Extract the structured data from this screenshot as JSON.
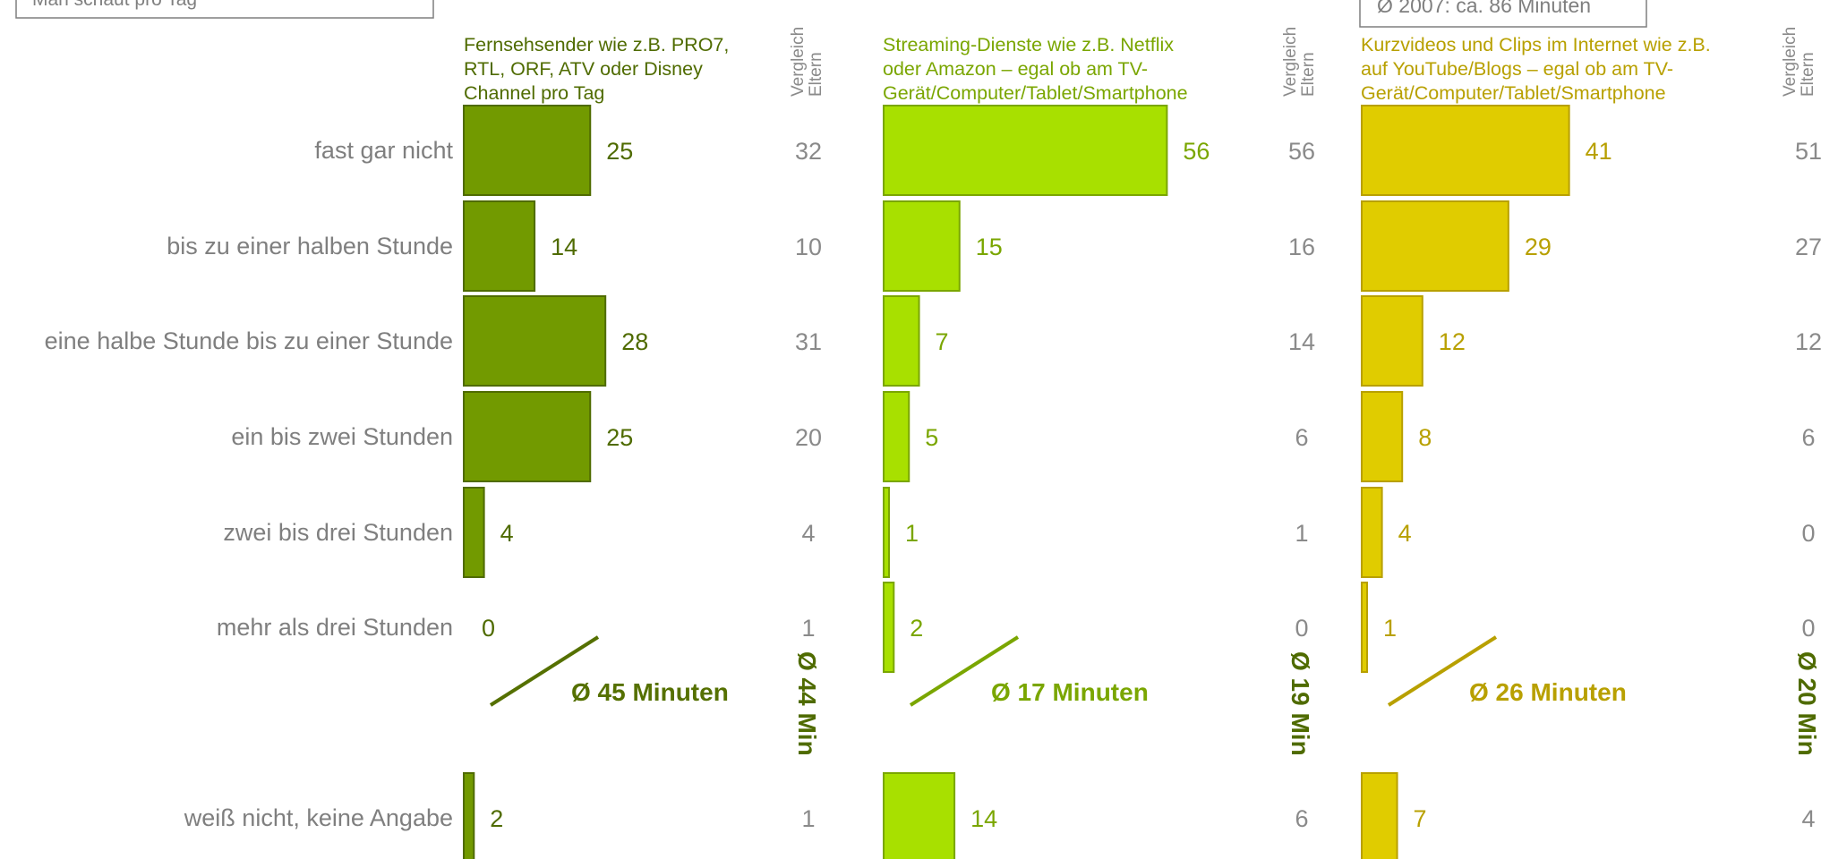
{
  "top_left_box_text": "Man schaut pro Tag",
  "top_right_box_text": "Ø 2007: ca. 86 Minuten",
  "vergleich_label_line1": "Vergleich",
  "vergleich_label_line2": "Eltern",
  "colors": {
    "tv_fill": "#729a00",
    "tv_stroke": "#4f6b00",
    "tv_text": "#4f6b00",
    "tv_avg": "#557000",
    "streaming_fill": "#a8e000",
    "streaming_stroke": "#7aa600",
    "streaming_text": "#7aa600",
    "streaming_avg": "#7aa600",
    "shorts_fill": "#e0cc00",
    "shorts_stroke": "#b8a000",
    "shorts_text": "#b8a000",
    "shorts_avg": "#b8a000",
    "category_text": "#7f7f7f",
    "compare_text": "#8a8a8a",
    "compare_avg_text": "#4f6b00",
    "box_stroke": "#7f7f7f",
    "box_text": "#7f7f7f"
  },
  "chart_data": {
    "type": "bar",
    "orientation": "horizontal",
    "categories": [
      "fast gar nicht",
      "bis zu einer halben Stunde",
      "eine halbe Stunde bis zu einer Stunde",
      "ein bis zwei Stunden",
      "zwei bis drei Stunden",
      "mehr als drei Stunden",
      "weiß nicht, keine Angabe"
    ],
    "series": [
      {
        "key": "tv",
        "name": "Fernsehsender wie z.B. PRO7, RTL, ORF, ATV oder Disney Channel pro Tag",
        "header_lines": [
          "Fernsehsender wie z.B. PRO7,",
          "RTL, ORF, ATV oder Disney",
          "Channel pro Tag"
        ],
        "values": [
          25,
          14,
          28,
          25,
          4,
          0,
          2
        ],
        "average_label": "Ø 45 Minuten",
        "compare_values": [
          32,
          10,
          31,
          20,
          4,
          1,
          1
        ],
        "compare_average_label": "Ø 44 Min"
      },
      {
        "key": "streaming",
        "name": "Streaming-Dienste wie z.B. Netflix oder Amazon – egal ob am TV-Gerät/Computer/Tablet/Smartphone",
        "header_lines": [
          "Streaming-Dienste wie z.B. Netflix",
          "oder Amazon – egal ob am TV-",
          "Gerät/Computer/Tablet/Smartphone"
        ],
        "values": [
          56,
          15,
          7,
          5,
          1,
          2,
          14
        ],
        "average_label": "Ø 17 Minuten",
        "compare_values": [
          56,
          16,
          14,
          6,
          1,
          0,
          6
        ],
        "compare_average_label": "Ø 19 Min"
      },
      {
        "key": "shorts",
        "name": "Kurzvideos und Clips im Internet wie z.B. auf YouTube/Blogs – egal ob am TV-Gerät/Computer/Tablet/Smartphone",
        "header_lines": [
          "Kurzvideos und Clips im Internet wie z.B.",
          "auf YouTube/Blogs – egal ob am TV-",
          "Gerät/Computer/Tablet/Smartphone"
        ],
        "values": [
          41,
          29,
          12,
          8,
          4,
          1,
          7
        ],
        "average_label": "Ø 26 Minuten",
        "compare_values": [
          51,
          27,
          12,
          6,
          0,
          0,
          4
        ],
        "compare_average_label": "Ø 20 Min"
      }
    ],
    "grid": false
  }
}
